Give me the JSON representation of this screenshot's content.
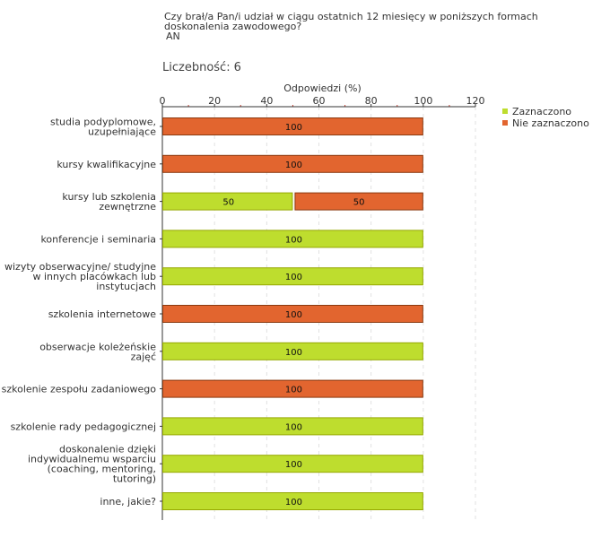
{
  "header": {
    "question_line1": "Czy brał/a Pan/i udział w ciągu ostatnich 12 miesięcy w poniższych formach",
    "question_line2": "doskonalenia zawodowego?",
    "code": "AN",
    "count_label": "Liczebność:",
    "count_value": "6"
  },
  "colors": {
    "zaznaczono": "#bedd2e",
    "zaznaczono_border": "#95a800",
    "nie_zaznaczono": "#e2652f",
    "nie_zaznaczono_border": "#8a3a10"
  },
  "chart_data": {
    "type": "bar",
    "orientation": "horizontal",
    "stacked": true,
    "xlabel": "Odpowiedzi (%)",
    "xlim": [
      0,
      120
    ],
    "xticks": [
      0,
      20,
      40,
      60,
      80,
      100,
      120
    ],
    "legend_position": "top-right",
    "categories": [
      [
        "studia podyplomowe,",
        "uzupełniające"
      ],
      [
        "kursy kwalifikacyjne"
      ],
      [
        "kursy lub szkolenia",
        "zewnętrzne"
      ],
      [
        "konferencje i seminaria"
      ],
      [
        "wizyty obserwacyjne/ studyjne",
        "w innych placówkach lub",
        "instytucjach"
      ],
      [
        "szkolenia internetowe"
      ],
      [
        "obserwacje koleżeńskie",
        "zajęć"
      ],
      [
        "szkolenie zespołu zadaniowego"
      ],
      [
        "szkolenie rady pedagogicznej"
      ],
      [
        "doskonalenie dzięki",
        "indywidualnemu wsparciu",
        "(coaching, mentoring,",
        "tutoring)"
      ],
      [
        "inne, jakie?"
      ]
    ],
    "series": [
      {
        "name": "Zaznaczono",
        "values": [
          0,
          0,
          50,
          100,
          100,
          0,
          100,
          0,
          100,
          100,
          100
        ]
      },
      {
        "name": "Nie zaznaczono",
        "values": [
          100,
          100,
          50,
          0,
          0,
          100,
          0,
          100,
          0,
          0,
          0
        ]
      }
    ]
  }
}
